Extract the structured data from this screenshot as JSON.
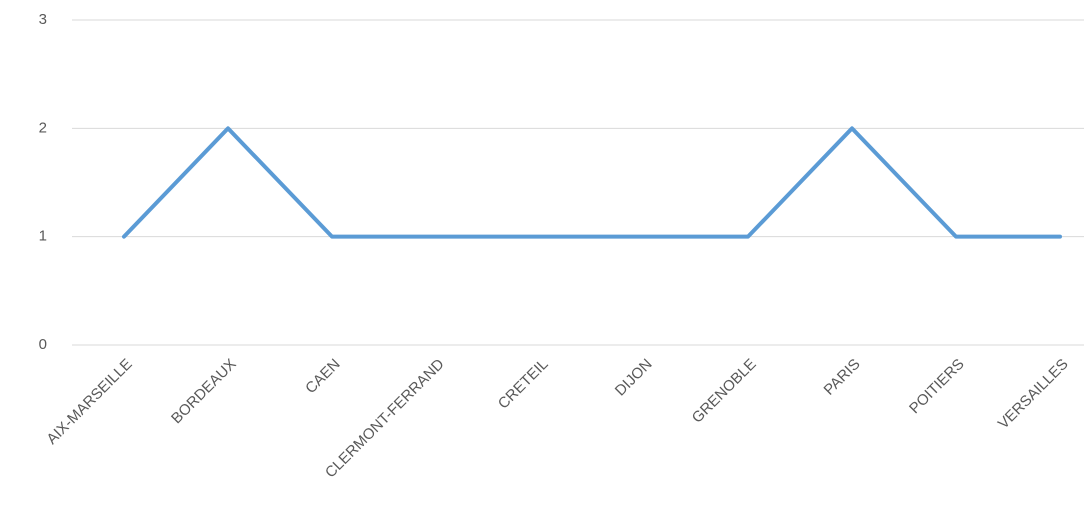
{
  "chart_data": {
    "type": "line",
    "categories": [
      "AIX-MARSEILLE",
      "BORDEAUX",
      "CAEN",
      "CLERMONT-FERRAND",
      "CRETEIL",
      "DIJON",
      "GRENOBLE",
      "PARIS",
      "POITIERS",
      "VERSAILLES"
    ],
    "values": [
      1,
      2,
      1,
      1,
      1,
      1,
      1,
      2,
      1,
      1
    ],
    "color": "#5b9bd5",
    "ylim": [
      0,
      3
    ],
    "yticks": [
      0,
      1,
      2,
      3
    ],
    "grid": true
  }
}
